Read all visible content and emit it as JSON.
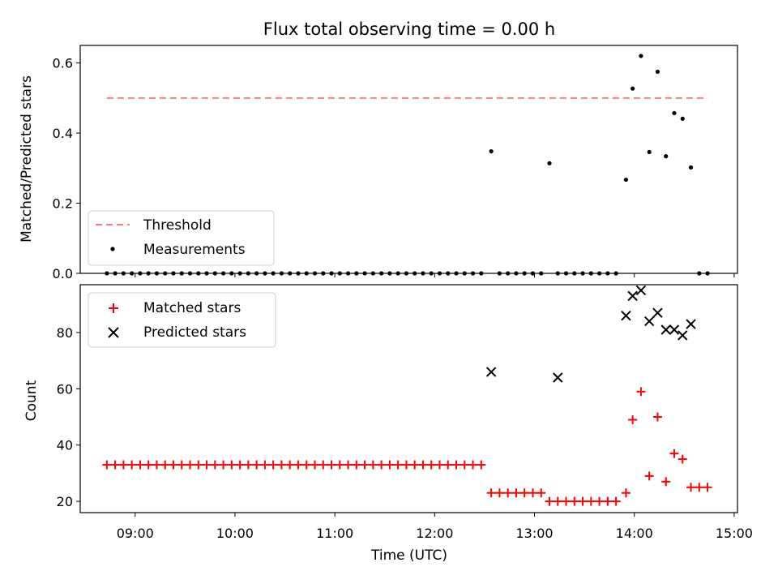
{
  "title": "Flux total observing time = 0.00 h",
  "colors": {
    "threshold": "#f08080",
    "measurement": "#000000",
    "matched": "#ff0000",
    "predicted": "#000000"
  },
  "chart_data": [
    {
      "type": "scatter",
      "panel": "top",
      "ylabel": "Matched/Predicted stars",
      "ylim": [
        0,
        0.65
      ],
      "y_ticks": [
        0.0,
        0.2,
        0.4,
        0.6
      ],
      "y_tick_labels": [
        "0.0",
        "0.2",
        "0.4",
        "0.6"
      ],
      "xlim": [
        "08:27",
        "15:02"
      ],
      "legend_position": "lower-left",
      "series": [
        {
          "name": "Threshold",
          "type": "line",
          "style": "dashed",
          "x": [
            "08:43",
            "14:44"
          ],
          "y": [
            0.5,
            0.5
          ]
        },
        {
          "name": "Measurements",
          "type": "scatter",
          "x": [
            "08:43",
            "08:48",
            "08:53",
            "08:58",
            "09:03",
            "09:08",
            "09:13",
            "09:18",
            "09:23",
            "09:28",
            "09:33",
            "09:38",
            "09:43",
            "09:48",
            "09:53",
            "09:58",
            "10:03",
            "10:08",
            "10:13",
            "10:18",
            "10:23",
            "10:28",
            "10:33",
            "10:38",
            "10:43",
            "10:48",
            "10:53",
            "10:58",
            "11:03",
            "11:08",
            "11:13",
            "11:18",
            "11:23",
            "11:28",
            "11:33",
            "11:38",
            "11:43",
            "11:48",
            "11:53",
            "11:58",
            "12:03",
            "12:08",
            "12:13",
            "12:18",
            "12:23",
            "12:28",
            "12:34",
            "12:39",
            "12:44",
            "12:49",
            "12:54",
            "12:59",
            "13:04",
            "13:09",
            "13:14",
            "13:19",
            "13:24",
            "13:29",
            "13:34",
            "13:39",
            "13:44",
            "13:49",
            "13:55",
            "13:59",
            "14:04",
            "14:09",
            "14:14",
            "14:19",
            "14:24",
            "14:29",
            "14:34",
            "14:39",
            "14:44"
          ],
          "y": [
            0,
            0,
            0,
            0,
            0,
            0,
            0,
            0,
            0,
            0,
            0,
            0,
            0,
            0,
            0,
            0,
            0,
            0,
            0,
            0,
            0,
            0,
            0,
            0,
            0,
            0,
            0,
            0,
            0,
            0,
            0,
            0,
            0,
            0,
            0,
            0,
            0,
            0,
            0,
            0,
            0,
            0,
            0,
            0,
            0,
            0,
            0.348,
            0,
            0,
            0,
            0,
            0,
            0,
            0.314,
            0,
            0,
            0,
            0,
            0,
            0,
            0,
            0,
            0.267,
            0.527,
            0.62,
            0.346,
            0.575,
            0.334,
            0.457,
            0.441,
            0.302,
            0,
            0
          ]
        }
      ]
    },
    {
      "type": "scatter",
      "panel": "bottom",
      "xlabel": "Time (UTC)",
      "ylabel": "Count",
      "ylim": [
        16,
        97
      ],
      "y_ticks": [
        20,
        40,
        60,
        80
      ],
      "y_tick_labels": [
        "20",
        "40",
        "60",
        "80"
      ],
      "xlim": [
        "08:27",
        "15:02"
      ],
      "x_ticks": [
        "09:00",
        "10:00",
        "11:00",
        "12:00",
        "13:00",
        "14:00",
        "15:00"
      ],
      "x_tick_labels": [
        "09:00",
        "10:00",
        "11:00",
        "12:00",
        "13:00",
        "14:00",
        "15:00"
      ],
      "legend_position": "upper-left",
      "series": [
        {
          "name": "Matched stars",
          "marker": "plus",
          "x": [
            "08:43",
            "08:48",
            "08:53",
            "08:58",
            "09:03",
            "09:08",
            "09:13",
            "09:18",
            "09:23",
            "09:28",
            "09:33",
            "09:38",
            "09:43",
            "09:48",
            "09:53",
            "09:58",
            "10:03",
            "10:08",
            "10:13",
            "10:18",
            "10:23",
            "10:28",
            "10:33",
            "10:38",
            "10:43",
            "10:48",
            "10:53",
            "10:58",
            "11:03",
            "11:08",
            "11:13",
            "11:18",
            "11:23",
            "11:28",
            "11:33",
            "11:38",
            "11:43",
            "11:48",
            "11:53",
            "11:58",
            "12:03",
            "12:08",
            "12:13",
            "12:18",
            "12:23",
            "12:28",
            "12:34",
            "12:39",
            "12:44",
            "12:49",
            "12:54",
            "12:59",
            "13:04",
            "13:09",
            "13:14",
            "13:19",
            "13:24",
            "13:29",
            "13:34",
            "13:39",
            "13:44",
            "13:49",
            "13:55",
            "13:59",
            "14:04",
            "14:09",
            "14:14",
            "14:19",
            "14:24",
            "14:29",
            "14:34",
            "14:39",
            "14:44"
          ],
          "y": [
            33,
            33,
            33,
            33,
            33,
            33,
            33,
            33,
            33,
            33,
            33,
            33,
            33,
            33,
            33,
            33,
            33,
            33,
            33,
            33,
            33,
            33,
            33,
            33,
            33,
            33,
            33,
            33,
            33,
            33,
            33,
            33,
            33,
            33,
            33,
            33,
            33,
            33,
            33,
            33,
            33,
            33,
            33,
            33,
            33,
            33,
            23,
            23,
            23,
            23,
            23,
            23,
            23,
            20,
            20,
            20,
            20,
            20,
            20,
            20,
            20,
            20,
            23,
            49,
            59,
            29,
            50,
            27,
            37,
            35,
            25,
            25,
            25
          ]
        },
        {
          "name": "Predicted stars",
          "marker": "x",
          "x": [
            "12:34",
            "13:14",
            "13:55",
            "13:59",
            "14:04",
            "14:09",
            "14:14",
            "14:19",
            "14:24",
            "14:29",
            "14:34"
          ],
          "y": [
            66,
            64,
            86,
            93,
            95,
            84,
            87,
            81,
            81,
            79,
            83
          ]
        }
      ]
    }
  ]
}
